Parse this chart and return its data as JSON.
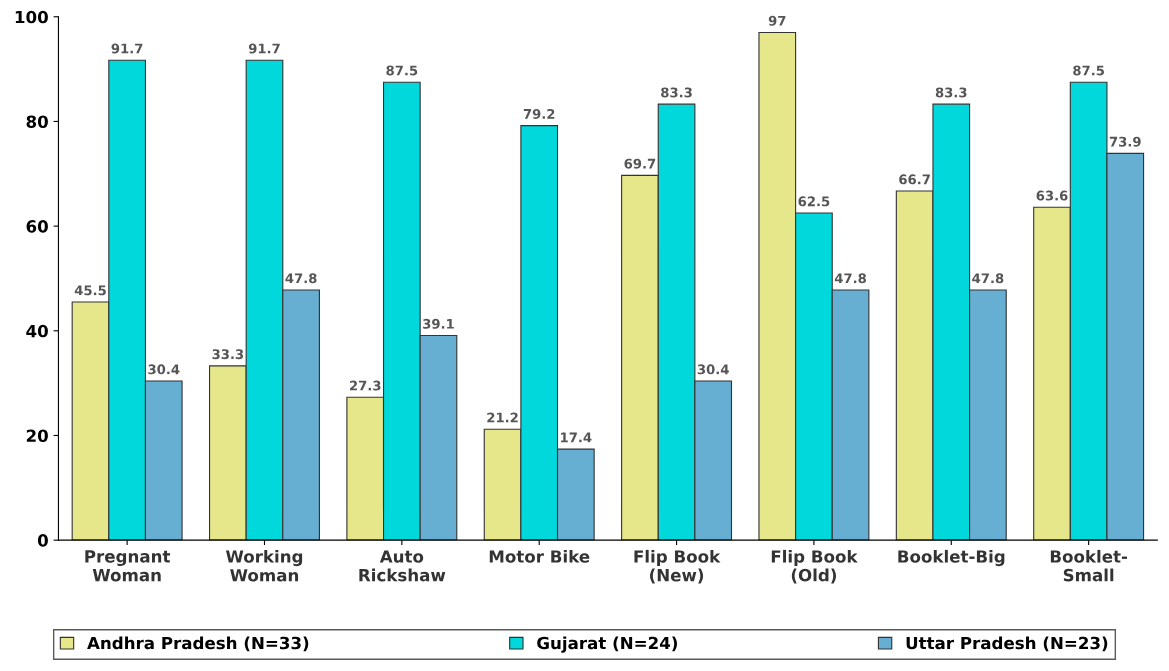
{
  "chart_data": {
    "type": "bar",
    "categories": [
      "Pregnant\nWoman",
      "Working\nWoman",
      "Auto\nRickshaw",
      "Motor Bike",
      "Flip Book\n(New)",
      "Flip Book\n(Old)",
      "Booklet-Big",
      "Booklet-\nSmall"
    ],
    "series": [
      {
        "name": "Andhra Pradesh (N=33)",
        "color": "#e6e68a",
        "values": [
          45.5,
          33.3,
          27.3,
          21.2,
          69.7,
          97,
          66.7,
          63.6
        ]
      },
      {
        "name": "Gujarat (N=24)",
        "color": "#00d8dc",
        "values": [
          91.7,
          91.7,
          87.5,
          79.2,
          83.3,
          62.5,
          83.3,
          87.5
        ]
      },
      {
        "name": "Uttar Pradesh (N=23)",
        "color": "#66afd2",
        "values": [
          30.4,
          47.8,
          39.1,
          17.4,
          30.4,
          47.8,
          47.8,
          73.9
        ]
      }
    ],
    "ylim": [
      0,
      100
    ],
    "yticks": [
      0,
      20,
      40,
      60,
      80,
      100
    ],
    "data_labels": true,
    "grid": false,
    "legend": "bottom"
  }
}
